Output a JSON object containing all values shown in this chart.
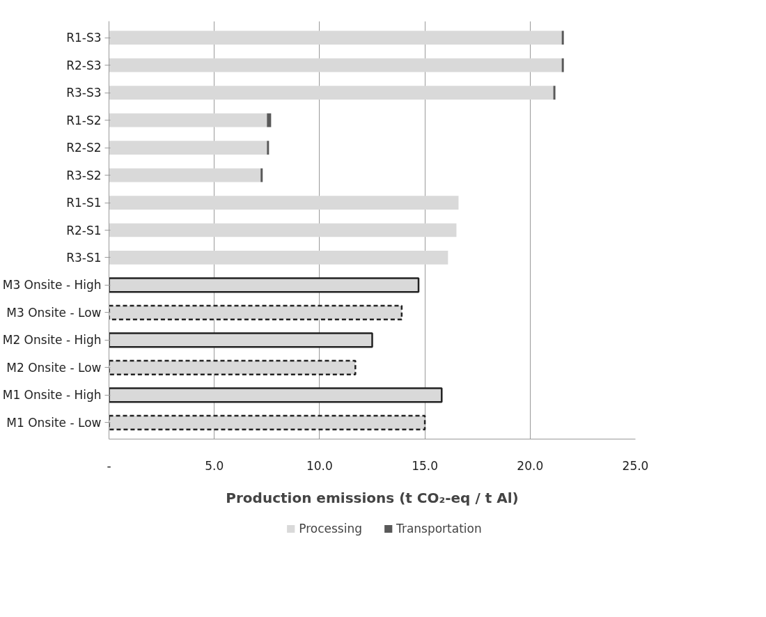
{
  "chart_data": {
    "type": "bar",
    "orientation": "horizontal",
    "stacked": true,
    "categories": [
      "R1-S3",
      "R2-S3",
      "R3-S3",
      "R1-S2",
      "R2-S2",
      "R3-S2",
      "R1-S1",
      "R2-S1",
      "R3-S1",
      "M3 Onsite - High",
      "M3 Onsite - Low",
      "M2 Onsite - High",
      "M2 Onsite - Low",
      "M1 Onsite - High",
      "M1 Onsite - Low"
    ],
    "series": [
      {
        "name": "Processing",
        "color": "#d9d9d9",
        "values": [
          21.5,
          21.5,
          21.1,
          7.5,
          7.5,
          7.2,
          16.6,
          16.5,
          16.1,
          null,
          null,
          null,
          null,
          null,
          null
        ]
      },
      {
        "color": "#d9d9d9",
        "line_style": "solid",
        "values": [
          null,
          null,
          null,
          null,
          null,
          null,
          null,
          null,
          null,
          14.7,
          null,
          12.5,
          null,
          15.8,
          null
        ]
      },
      {
        "color": "#d9d9d9",
        "line_style": "dashed",
        "values": [
          null,
          null,
          null,
          null,
          null,
          null,
          null,
          null,
          null,
          null,
          13.9,
          null,
          11.7,
          null,
          15.0
        ]
      },
      {
        "name": "Transportation",
        "color": "#595959",
        "values": [
          0.1,
          0.1,
          0.1,
          0.2,
          0.1,
          0.1,
          null,
          null,
          null,
          null,
          null,
          null,
          null,
          null,
          null
        ]
      }
    ],
    "xlabel": "Production emissions (t CO₂-eq / t Al)",
    "xlim": [
      0,
      25
    ],
    "xticks": [
      {
        "value": 0,
        "label": "-"
      },
      {
        "value": 5,
        "label": "5.0"
      },
      {
        "value": 10,
        "label": "10.0"
      },
      {
        "value": 15,
        "label": "15.0"
      },
      {
        "value": 20,
        "label": "20.0"
      },
      {
        "value": 25,
        "label": "25.0"
      }
    ],
    "grid": "x",
    "legend": "bottom"
  }
}
